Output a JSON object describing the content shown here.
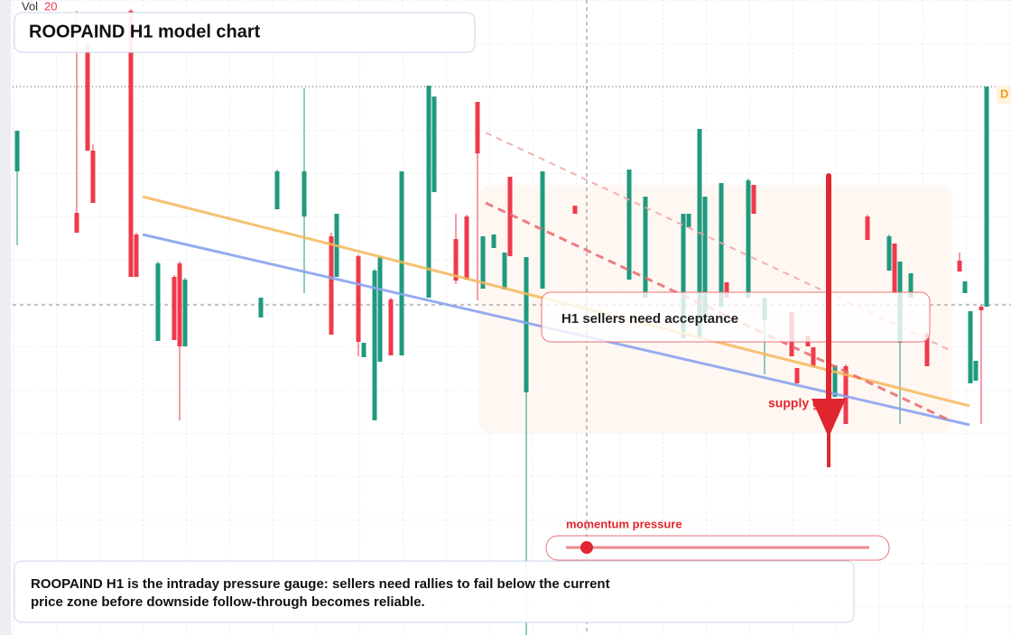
{
  "chart_data": {
    "type": "candlestick",
    "title": "ROOPAIND H1 model chart",
    "volume_label": "Vol",
    "volume_value": "20",
    "badge": "D",
    "callout": "H1 sellers need acceptance",
    "arrow_label": "supply gap",
    "slider_label": "momentum pressure",
    "description": [
      "ROOPAIND H1 is the intraday pressure gauge: sellers need rallies to fail below the current",
      "price zone before downside follow-through becomes reliable."
    ],
    "up_color": "#1f9a7f",
    "down_color": "#ee3a4b",
    "xlim": [
      0,
      179
    ],
    "ylim": [
      0,
      70.4
    ],
    "x": [
      0,
      11,
      13,
      14,
      21,
      22,
      26,
      29,
      30,
      31,
      45,
      48,
      53,
      58,
      59,
      63,
      64,
      66,
      67,
      69,
      71,
      76,
      77,
      81,
      83,
      85,
      86,
      88,
      90,
      91,
      94,
      97,
      103,
      113,
      116,
      123,
      124,
      126,
      127,
      130,
      131,
      135,
      136,
      138,
      143,
      144,
      146,
      147,
      151,
      153,
      157,
      161,
      162,
      163,
      165,
      168,
      174,
      175,
      176,
      177,
      178,
      179
    ],
    "open": [
      51.4,
      46.8,
      65.4,
      53.7,
      69.2,
      44.4,
      32.6,
      39.7,
      41.2,
      32.0,
      35.2,
      47.2,
      46.4,
      44.2,
      39.7,
      42.0,
      30.8,
      23.8,
      30.3,
      37.2,
      31.0,
      37.4,
      49.1,
      43.9,
      46.4,
      59.1,
      38.4,
      42.9,
      38.3,
      50.8,
      26.9,
      38.4,
      47.6,
      39.4,
      37.4,
      32.9,
      45.2,
      32.9,
      34.9,
      36.4,
      39.1,
      37.4,
      49.9,
      34.9,
      35.8,
      29.6,
      33.2,
      31.9,
      26.4,
      29.8,
      46.4,
      40.4,
      43.4,
      32.4,
      37.4,
      33.4,
      41.5,
      37.9,
      27.9,
      28.2,
      36.4,
      36.4
    ],
    "high": [
      55.9,
      69.2,
      65.9,
      54.4,
      69.4,
      44.6,
      41.4,
      39.9,
      41.4,
      39.6,
      37.4,
      51.6,
      60.6,
      44.6,
      46.7,
      42.2,
      32.4,
      40.6,
      42.1,
      37.4,
      51.4,
      60.9,
      59.7,
      46.7,
      46.6,
      59.1,
      44.2,
      44.4,
      42.4,
      50.8,
      41.9,
      51.4,
      47.6,
      51.6,
      48.6,
      46.7,
      46.7,
      56.1,
      48.6,
      50.1,
      39.1,
      50.6,
      49.9,
      37.4,
      35.8,
      29.6,
      33.2,
      31.9,
      29.9,
      30.0,
      46.6,
      44.4,
      43.4,
      41.4,
      40.1,
      33.6,
      42.4,
      39.2,
      35.9,
      30.4,
      36.6,
      60.8
    ],
    "low": [
      43.2,
      44.6,
      53.7,
      47.9,
      39.7,
      39.7,
      32.6,
      32.7,
      23.8,
      32.0,
      35.2,
      47.2,
      37.9,
      33.3,
      39.7,
      30.9,
      30.8,
      23.8,
      30.3,
      31.0,
      31.0,
      37.4,
      49.1,
      38.9,
      39.4,
      37.1,
      38.4,
      42.9,
      38.3,
      42.0,
      0,
      38.4,
      46.7,
      39.4,
      37.4,
      32.9,
      45.2,
      32.9,
      34.9,
      36.4,
      37.4,
      37.4,
      46.7,
      28.9,
      30.9,
      27.9,
      32.0,
      29.7,
      26.4,
      23.4,
      43.8,
      40.4,
      37.9,
      23.4,
      37.4,
      29.8,
      40.3,
      37.9,
      27.9,
      28.2,
      23.4,
      36.4
    ],
    "close": [
      55.9,
      44.6,
      53.7,
      47.9,
      39.7,
      39.7,
      41.2,
      32.7,
      32.0,
      39.4,
      37.4,
      51.4,
      51.4,
      33.3,
      46.7,
      32.5,
      32.4,
      40.4,
      41.9,
      31.0,
      51.4,
      60.9,
      59.7,
      39.3,
      39.4,
      53.4,
      44.2,
      44.4,
      42.4,
      42.0,
      41.9,
      51.4,
      46.7,
      51.6,
      48.6,
      46.7,
      46.7,
      56.1,
      48.6,
      50.1,
      37.4,
      50.4,
      46.7,
      37.4,
      30.9,
      27.9,
      32.0,
      29.7,
      29.9,
      23.4,
      43.8,
      44.2,
      37.9,
      41.4,
      40.1,
      29.8,
      40.3,
      39.2,
      35.9,
      30.4,
      36.0,
      60.8
    ]
  }
}
